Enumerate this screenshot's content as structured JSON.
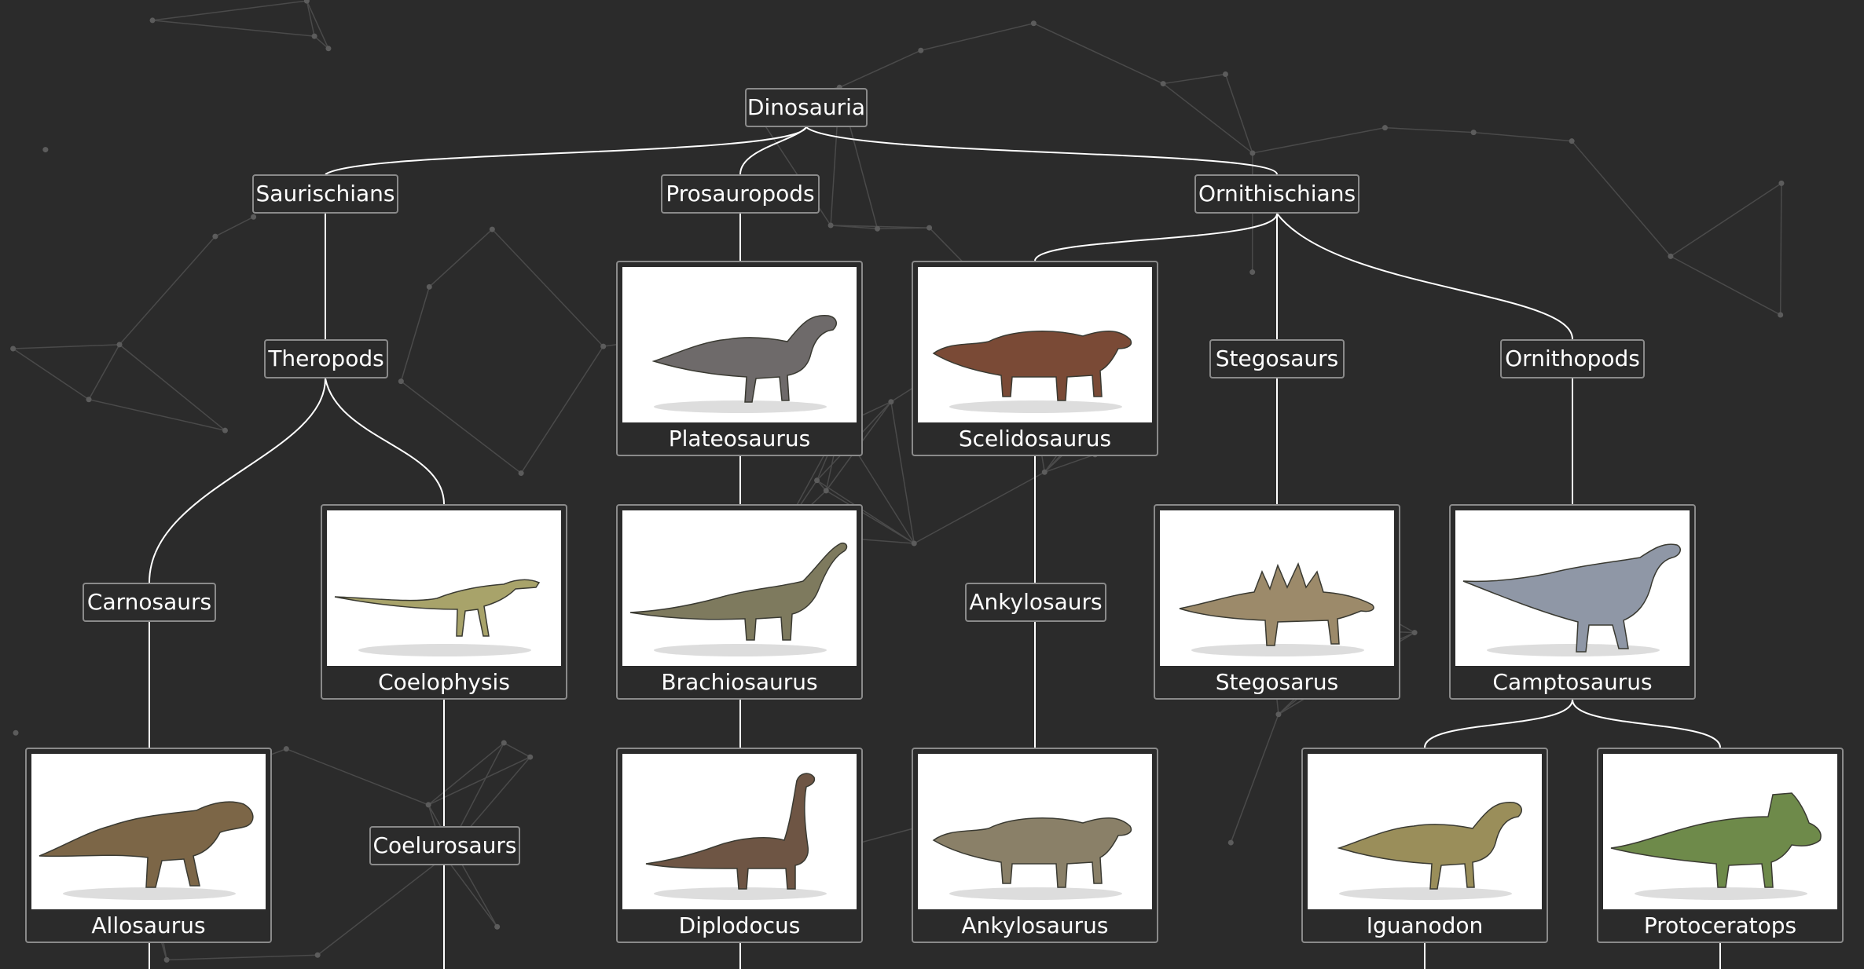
{
  "nodes": {
    "dinosauria": "Dinosauria",
    "saurischians": "Saurischians",
    "prosauropods": "Prosauropods",
    "ornithischians": "Ornithischians",
    "theropods": "Theropods",
    "stegosaurs": "Stegosaurs",
    "ornithopods": "Ornithopods",
    "carnosaurs": "Carnosaurs",
    "ankylosaurs": "Ankylosaurs",
    "coelurosaurs": "Coelurosaurs"
  },
  "cards": {
    "plateosaurus": {
      "label": "Plateosaurus",
      "icon": "dinosaur-illustration",
      "color": "#6e6a6a"
    },
    "scelidosaurus": {
      "label": "Scelidosaurus",
      "icon": "dinosaur-illustration",
      "color": "#7a4a36"
    },
    "coelophysis": {
      "label": "Coelophysis",
      "icon": "dinosaur-illustration",
      "color": "#a8a36a"
    },
    "brachiosaurus": {
      "label": "Brachiosaurus",
      "icon": "dinosaur-illustration",
      "color": "#7e7a5e"
    },
    "stegosarus": {
      "label": "Stegosarus",
      "icon": "dinosaur-illustration",
      "color": "#9c8a6a"
    },
    "camptosaurus": {
      "label": "Camptosaurus",
      "icon": "dinosaur-illustration",
      "color": "#8f97a6"
    },
    "allosaurus": {
      "label": "Allosaurus",
      "icon": "dinosaur-illustration",
      "color": "#7c6647"
    },
    "diplodocus": {
      "label": "Diplodocus",
      "icon": "dinosaur-illustration",
      "color": "#6e5544"
    },
    "ankylosaurus": {
      "label": "Ankylosaurus",
      "icon": "dinosaur-illustration",
      "color": "#8a8068"
    },
    "iguanodon": {
      "label": "Iguanodon",
      "icon": "dinosaur-illustration",
      "color": "#9a8e5a"
    },
    "protoceratops": {
      "label": "Protoceratops",
      "icon": "dinosaur-illustration",
      "color": "#6e8a4a"
    }
  },
  "colors": {
    "background": "#2b2b2b",
    "border": "#8a8a8a",
    "edge": "#ffffff",
    "text": "#ffffff"
  }
}
